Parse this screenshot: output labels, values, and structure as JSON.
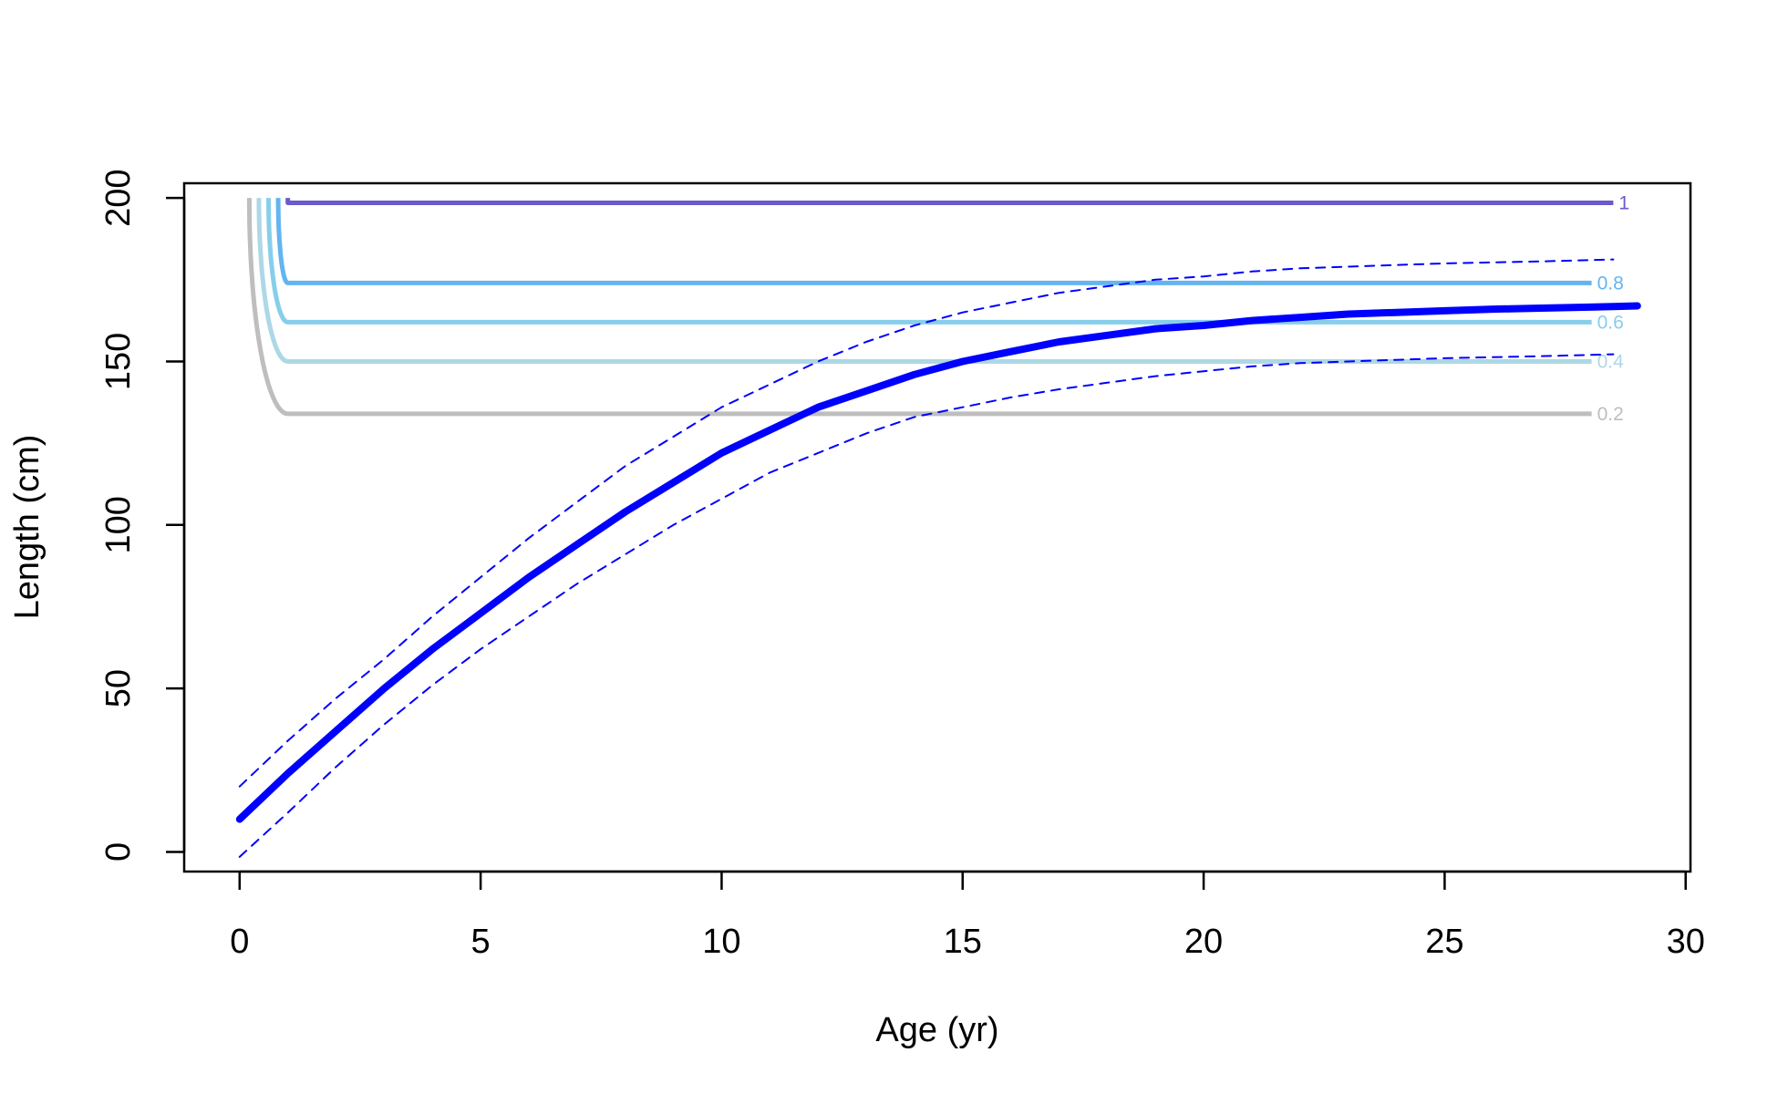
{
  "chart_data": {
    "type": "line",
    "xlabel": "Age (yr)",
    "ylabel": "Length (cm)",
    "xlim": [
      -1.15,
      30.1
    ],
    "ylim": [
      -6,
      204.5
    ],
    "x_ticks": [
      0,
      5,
      10,
      15,
      20,
      25,
      30
    ],
    "y_ticks": [
      0,
      50,
      100,
      150,
      200
    ],
    "x_tick_labels": [
      "0",
      "5",
      "10",
      "15",
      "20",
      "25",
      "30"
    ],
    "y_tick_labels": [
      "0",
      "50",
      "100",
      "150",
      "200"
    ],
    "grid": false,
    "legend": "none",
    "colors": {
      "mean": "#0000ff",
      "ci": "#0000ff",
      "c02": "#bebebe",
      "c04": "#add8e6",
      "c06": "#87ceeb",
      "c08": "#64b4f0",
      "c10": "#6a5acd"
    },
    "series": [
      {
        "role": "mean",
        "x": [
          0,
          1,
          2,
          3,
          4,
          5,
          6,
          7,
          8,
          9,
          10,
          11,
          12,
          13,
          14,
          15,
          16,
          17,
          18,
          19,
          20,
          21,
          22,
          23,
          24,
          25,
          26,
          27,
          28,
          29
        ],
        "y": [
          10,
          24,
          37,
          50,
          62,
          73,
          84,
          94,
          104,
          113,
          122,
          129,
          136,
          141,
          146,
          150,
          153,
          156,
          158,
          160,
          161,
          162.5,
          163.5,
          164.5,
          165,
          165.5,
          166,
          166.3,
          166.6,
          167
        ]
      },
      {
        "role": "upper",
        "x": [
          0,
          1,
          2,
          3,
          4,
          5,
          6,
          7,
          8,
          9,
          10,
          11,
          12,
          13,
          14,
          15,
          16,
          17,
          18,
          19,
          20,
          21,
          22,
          23,
          24,
          25,
          26,
          27,
          28,
          28.5
        ],
        "y": [
          20,
          34,
          47,
          59,
          72,
          84,
          96,
          107,
          118,
          127,
          136,
          143,
          150,
          156,
          161,
          165,
          168,
          171,
          173,
          175,
          176,
          177.5,
          178.5,
          179,
          179.5,
          180,
          180.3,
          180.6,
          181,
          181.2
        ]
      },
      {
        "role": "lower",
        "x": [
          0,
          1,
          2,
          3,
          4,
          5,
          6,
          7,
          8,
          9,
          10,
          11,
          12,
          13,
          14,
          15,
          16,
          17,
          18,
          19,
          20,
          21,
          22,
          23,
          24,
          25,
          26,
          27,
          28,
          28.5
        ],
        "y": [
          -1.5,
          12,
          26,
          39,
          51,
          62,
          72,
          82,
          91,
          100,
          108,
          116,
          122,
          128,
          133,
          136,
          139,
          141.5,
          143.5,
          145.5,
          147,
          148.5,
          149.5,
          150,
          150.5,
          151,
          151.3,
          151.6,
          152,
          152.2
        ]
      }
    ],
    "contours": [
      {
        "label": "0.2",
        "level": 134,
        "x_start": 0.2,
        "x_end": 28.05
      },
      {
        "label": "0.4",
        "level": 150,
        "x_start": 0.4,
        "x_end": 28.05
      },
      {
        "label": "0.6",
        "level": 162,
        "x_start": 0.6,
        "x_end": 28.05
      },
      {
        "label": "0.8",
        "level": 174,
        "x_start": 0.8,
        "x_end": 28.05
      },
      {
        "label": "1",
        "level": 198.5,
        "x_start": 1.0,
        "x_end": 28.5
      }
    ]
  }
}
